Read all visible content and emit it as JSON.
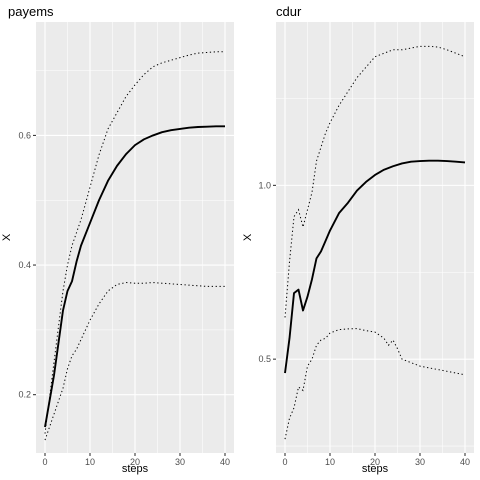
{
  "chart_data": [
    {
      "type": "line",
      "title": "payems",
      "xlabel": "steps",
      "ylabel": "X",
      "xlim": [
        -2,
        42
      ],
      "ylim": [
        0.11,
        0.775
      ],
      "xticks": [
        0,
        10,
        20,
        30,
        40
      ],
      "yticks": [
        0.2,
        0.4,
        0.6
      ],
      "ytick_labels": [
        "0.2",
        "0.4",
        "0.6"
      ],
      "grid": true,
      "series": [
        {
          "style": "solid",
          "x": [
            0,
            2,
            4,
            5,
            6,
            7,
            8,
            10,
            12,
            14,
            16,
            18,
            20,
            22,
            24,
            26,
            28,
            30,
            32,
            34,
            36,
            38,
            40
          ],
          "y": [
            0.15,
            0.23,
            0.33,
            0.36,
            0.375,
            0.405,
            0.43,
            0.465,
            0.5,
            0.53,
            0.553,
            0.571,
            0.585,
            0.594,
            0.6,
            0.605,
            0.608,
            0.61,
            0.612,
            0.613,
            0.6135,
            0.614,
            0.614
          ]
        },
        {
          "style": "dotted",
          "x": [
            0,
            2,
            4,
            5,
            6,
            7,
            8,
            10,
            12,
            14,
            16,
            18,
            20,
            22,
            24,
            26,
            28,
            30,
            32,
            34,
            36,
            38,
            40
          ],
          "y": [
            0.14,
            0.25,
            0.36,
            0.4,
            0.43,
            0.45,
            0.47,
            0.52,
            0.57,
            0.61,
            0.635,
            0.66,
            0.678,
            0.694,
            0.706,
            0.712,
            0.716,
            0.72,
            0.724,
            0.727,
            0.728,
            0.729,
            0.729
          ]
        },
        {
          "style": "dotted",
          "x": [
            0,
            2,
            4,
            5,
            6,
            7,
            8,
            10,
            12,
            14,
            16,
            18,
            20,
            22,
            24,
            26,
            28,
            30,
            32,
            34,
            36,
            38,
            40
          ],
          "y": [
            0.13,
            0.17,
            0.21,
            0.24,
            0.26,
            0.27,
            0.285,
            0.315,
            0.34,
            0.36,
            0.37,
            0.373,
            0.372,
            0.372,
            0.373,
            0.372,
            0.371,
            0.37,
            0.369,
            0.368,
            0.367,
            0.367,
            0.367
          ]
        }
      ]
    },
    {
      "type": "line",
      "title": "cdur",
      "xlabel": "steps",
      "ylabel": "X",
      "xlim": [
        -2,
        42
      ],
      "ylim": [
        0.23,
        1.47
      ],
      "xticks": [
        0,
        10,
        20,
        30,
        40
      ],
      "yticks": [
        0.5,
        1.0
      ],
      "ytick_labels": [
        "0.5",
        "1.0"
      ],
      "grid": true,
      "series": [
        {
          "style": "solid",
          "x": [
            0,
            1,
            2,
            3,
            4,
            5,
            6,
            7,
            8,
            9,
            10,
            12,
            14,
            16,
            18,
            20,
            22,
            24,
            26,
            28,
            30,
            32,
            34,
            36,
            38,
            40
          ],
          "y": [
            0.46,
            0.56,
            0.69,
            0.7,
            0.64,
            0.68,
            0.73,
            0.79,
            0.81,
            0.84,
            0.87,
            0.92,
            0.95,
            0.985,
            1.01,
            1.03,
            1.045,
            1.055,
            1.063,
            1.068,
            1.07,
            1.071,
            1.071,
            1.07,
            1.068,
            1.066
          ]
        },
        {
          "style": "dotted",
          "x": [
            0,
            1,
            2,
            3,
            4,
            5,
            6,
            7,
            8,
            9,
            10,
            12,
            14,
            16,
            18,
            20,
            22,
            24,
            26,
            28,
            30,
            32,
            34,
            36,
            38,
            40
          ],
          "y": [
            0.62,
            0.78,
            0.91,
            0.93,
            0.88,
            0.93,
            0.98,
            1.07,
            1.11,
            1.15,
            1.18,
            1.23,
            1.27,
            1.31,
            1.34,
            1.37,
            1.38,
            1.39,
            1.39,
            1.395,
            1.4,
            1.4,
            1.398,
            1.39,
            1.38,
            1.37
          ]
        },
        {
          "style": "dotted",
          "x": [
            0,
            1,
            2,
            3,
            4,
            5,
            6,
            7,
            8,
            9,
            10,
            12,
            14,
            16,
            18,
            20,
            22,
            23,
            24,
            25,
            26,
            28,
            30,
            32,
            34,
            36,
            38,
            40
          ],
          "y": [
            0.27,
            0.33,
            0.36,
            0.42,
            0.41,
            0.48,
            0.5,
            0.54,
            0.555,
            0.56,
            0.575,
            0.585,
            0.587,
            0.588,
            0.582,
            0.578,
            0.56,
            0.54,
            0.555,
            0.53,
            0.5,
            0.49,
            0.48,
            0.475,
            0.47,
            0.465,
            0.46,
            0.455
          ]
        }
      ]
    }
  ]
}
